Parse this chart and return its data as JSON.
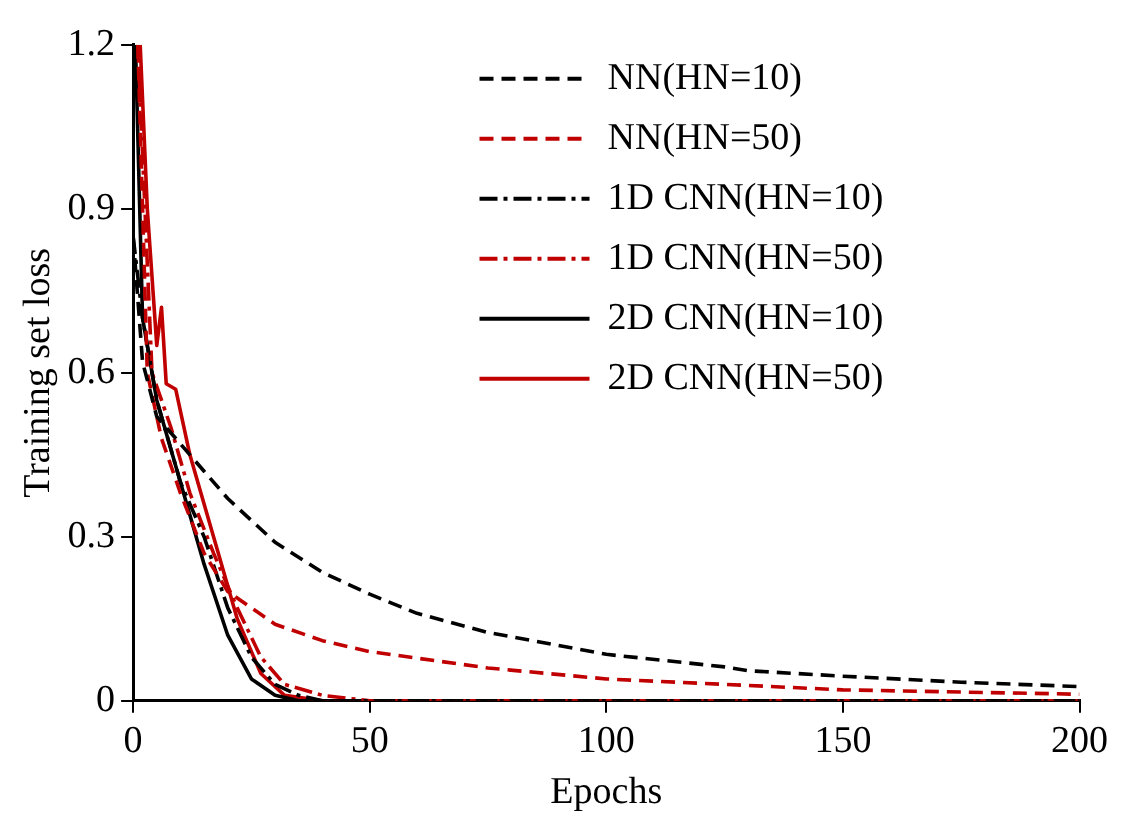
{
  "chart_data": {
    "type": "line",
    "xlabel": "Epochs",
    "ylabel": "Training set loss",
    "xlim": [
      0,
      200
    ],
    "xticks": [
      0,
      50,
      100,
      150,
      200
    ],
    "ylim": [
      0,
      1.2
    ],
    "yticks": [
      0,
      0.3,
      0.6,
      0.9,
      1.2
    ],
    "grid": false,
    "legend": "top right",
    "marker": "none",
    "series": [
      {
        "name": "NN(HN=10)",
        "color": "#000000",
        "line_style": "dashed",
        "x": [
          0,
          2,
          5,
          10,
          15,
          20,
          30,
          40,
          50,
          60,
          75,
          100,
          125,
          130,
          150,
          175,
          200
        ],
        "values": [
          0.85,
          0.62,
          0.52,
          0.47,
          0.42,
          0.37,
          0.29,
          0.235,
          0.195,
          0.16,
          0.125,
          0.085,
          0.062,
          0.055,
          0.045,
          0.034,
          0.026
        ]
      },
      {
        "name": "NN(HN=50)",
        "color": "#c00000",
        "line_style": "dashed",
        "x": [
          1,
          3,
          6,
          10,
          15,
          20,
          25,
          30,
          40,
          50,
          75,
          100,
          150,
          200
        ],
        "values": [
          1.2,
          0.6,
          0.48,
          0.38,
          0.27,
          0.2,
          0.17,
          0.14,
          0.11,
          0.09,
          0.06,
          0.04,
          0.02,
          0.012
        ]
      },
      {
        "name": "1D CNN(HN=10)",
        "color": "#000000",
        "line_style": "dashdot",
        "x": [
          0,
          2,
          5,
          10,
          15,
          20,
          25,
          30,
          35,
          40,
          200
        ],
        "values": [
          0.85,
          0.7,
          0.55,
          0.4,
          0.3,
          0.17,
          0.08,
          0.03,
          0.01,
          0,
          0
        ]
      },
      {
        "name": "1D CNN(HN=50)",
        "color": "#c00000",
        "line_style": "dashdot",
        "x": [
          1,
          4,
          8,
          12,
          17,
          22,
          27,
          32,
          40,
          50,
          200
        ],
        "values": [
          1.2,
          0.6,
          0.5,
          0.38,
          0.27,
          0.17,
          0.08,
          0.03,
          0.01,
          0,
          0
        ]
      },
      {
        "name": "2D CNN(HN=10)",
        "color": "#000000",
        "line_style": "solid",
        "x": [
          0.5,
          2,
          5,
          10,
          15,
          20,
          25,
          30,
          35,
          200
        ],
        "values": [
          1.2,
          0.7,
          0.55,
          0.4,
          0.25,
          0.12,
          0.04,
          0.01,
          0,
          0
        ]
      },
      {
        "name": "2D CNN(HN=50)",
        "color": "#c00000",
        "line_style": "solid",
        "x": [
          1.5,
          3,
          5,
          6,
          7,
          9,
          12,
          17,
          22,
          27,
          32,
          40,
          200
        ],
        "values": [
          1.2,
          0.9,
          0.65,
          0.72,
          0.58,
          0.57,
          0.45,
          0.3,
          0.15,
          0.05,
          0.01,
          0,
          0
        ]
      }
    ]
  }
}
